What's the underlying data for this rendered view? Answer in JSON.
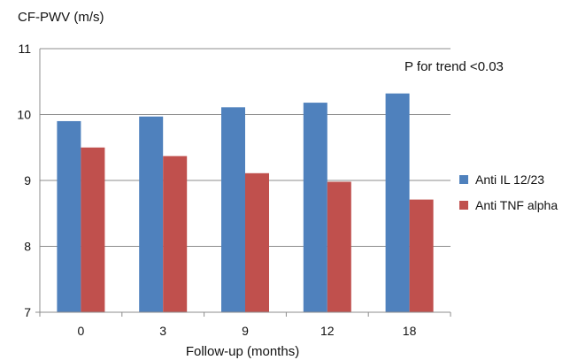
{
  "chart_data": {
    "type": "bar",
    "ylabel": "CF-PWV (m/s)",
    "xlabel": "Follow-up (months)",
    "annotation": "P for trend <0.03",
    "categories": [
      "0",
      "3",
      "9",
      "12",
      "18"
    ],
    "ylim": [
      7,
      11
    ],
    "yticks": [
      7,
      8,
      9,
      10,
      11
    ],
    "grid": "horizontal",
    "legend_position": "right",
    "series": [
      {
        "name": "Anti IL 12/23",
        "color": "#4F81BD",
        "values": [
          9.9,
          9.97,
          10.11,
          10.18,
          10.32
        ]
      },
      {
        "name": "Anti TNF alpha",
        "color": "#C0504D",
        "values": [
          9.5,
          9.37,
          9.11,
          8.98,
          8.71
        ]
      }
    ]
  }
}
